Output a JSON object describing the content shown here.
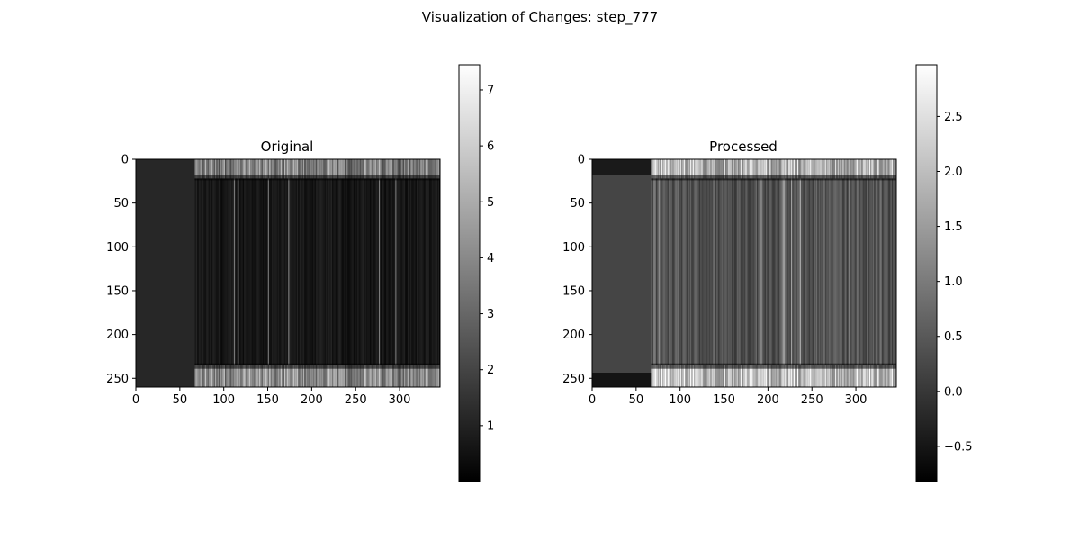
{
  "figure_title": "Visualization of Changes: step_777",
  "chart_data": [
    {
      "type": "heatmap",
      "title": "Original",
      "colormap": "gray",
      "x_range": [
        0,
        346
      ],
      "y_range": [
        0,
        260
      ],
      "y_inverted": true,
      "x_ticks": [
        0,
        50,
        100,
        150,
        200,
        250,
        300
      ],
      "y_ticks": [
        0,
        50,
        100,
        150,
        200,
        250
      ],
      "colorbar_range": [
        0.0,
        7.45
      ],
      "colorbar_ticks": [
        1,
        2,
        3,
        4,
        5,
        6,
        7
      ],
      "colorbar_tick_labels": [
        "1",
        "2",
        "3",
        "4",
        "5",
        "6",
        "7"
      ],
      "flat_region_x": [
        0,
        67
      ],
      "flat_region_value": 1.9,
      "band_rows_y": [
        22,
        235
      ],
      "background_value": 0.4
    },
    {
      "type": "heatmap",
      "title": "Processed",
      "colormap": "gray",
      "x_range": [
        0,
        346
      ],
      "y_range": [
        0,
        260
      ],
      "y_inverted": true,
      "x_ticks": [
        0,
        50,
        100,
        150,
        200,
        250,
        300
      ],
      "y_ticks": [
        0,
        50,
        100,
        150,
        200,
        250
      ],
      "colorbar_range": [
        -0.82,
        2.97
      ],
      "colorbar_ticks": [
        -0.5,
        0.0,
        0.5,
        1.0,
        1.5,
        2.0,
        2.5
      ],
      "colorbar_tick_labels": [
        "−0.5",
        "0.0",
        "0.5",
        "1.0",
        "1.5",
        "2.0",
        "2.5"
      ],
      "flat_region_x": [
        0,
        67
      ],
      "flat_region_value": 0.55,
      "band_rows_y": [
        22,
        235
      ],
      "background_value": 0.55
    }
  ]
}
